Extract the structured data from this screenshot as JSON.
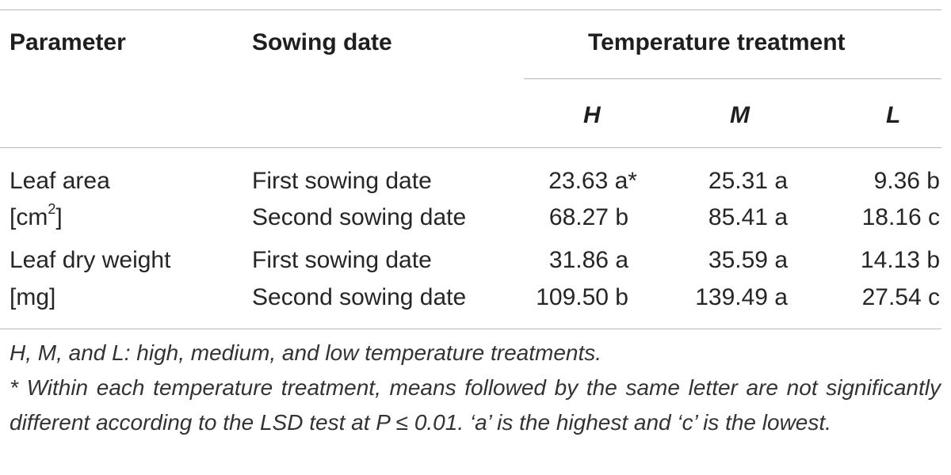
{
  "table": {
    "headers": {
      "parameter": "Parameter",
      "sowing_date": "Sowing date",
      "temperature_treatment": "Temperature treatment",
      "sub": [
        "H",
        "M",
        "L"
      ]
    },
    "rows": [
      {
        "parameter_line1": "Leaf area",
        "parameter_line2_prefix": "[cm",
        "parameter_line2_sup": "2",
        "parameter_line2_suffix": "]",
        "entries": [
          {
            "sowing": "First sowing date",
            "h": "23.63 a*",
            "m": "25.31 a",
            "l": "9.36 b"
          },
          {
            "sowing": "Second sowing date",
            "h": "68.27 b",
            "m": "85.41 a",
            "l": "18.16 c"
          }
        ]
      },
      {
        "parameter_line1": "Leaf dry weight",
        "parameter_line2": "[mg]",
        "entries": [
          {
            "sowing": "First sowing date",
            "h": "31.86 a",
            "m": "35.59 a",
            "l": "14.13 b"
          },
          {
            "sowing": "Second sowing date",
            "h": "109.50 b",
            "m": "139.49 a",
            "l": "27.54 c"
          }
        ]
      }
    ]
  },
  "footnotes": {
    "abbrev": "H, M, and L: high, medium, and low temperature treatments.",
    "significance": "* Within each temperature treatment, means followed by the same letter are not significantly different according to the LSD test at P ≤ 0.01. ‘a’ is the highest and ‘c’ is the lowest."
  }
}
